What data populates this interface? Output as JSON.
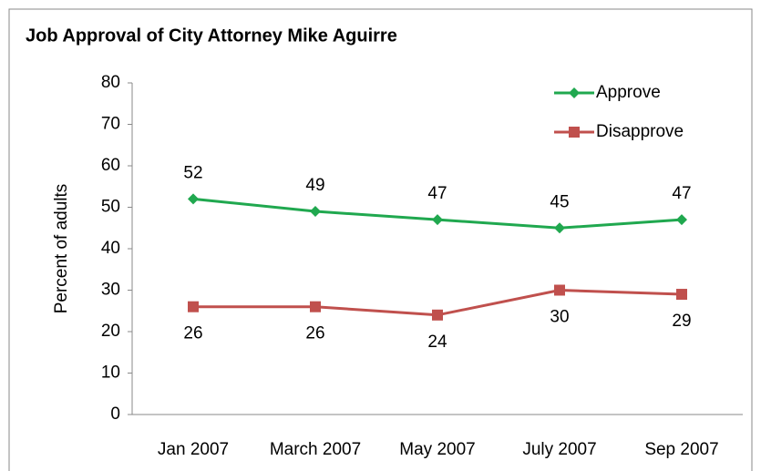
{
  "chart_data": {
    "type": "line",
    "title": "Job Approval of City Attorney Mike Aguirre",
    "ylabel": "Percent of adults",
    "categories": [
      "Jan 2007",
      "March 2007",
      "May 2007",
      "July 2007",
      "Sep 2007"
    ],
    "series": [
      {
        "name": "Approve",
        "color": "#20a84f",
        "marker": "diamond",
        "values": [
          52,
          49,
          47,
          45,
          47
        ]
      },
      {
        "name": "Disapprove",
        "color": "#c0504d",
        "marker": "square",
        "values": [
          26,
          26,
          24,
          30,
          29
        ]
      }
    ],
    "ylim": [
      0,
      80
    ],
    "yticks": [
      0,
      10,
      20,
      30,
      40,
      50,
      60,
      70,
      80
    ],
    "grid": false,
    "legend": "top-right"
  }
}
